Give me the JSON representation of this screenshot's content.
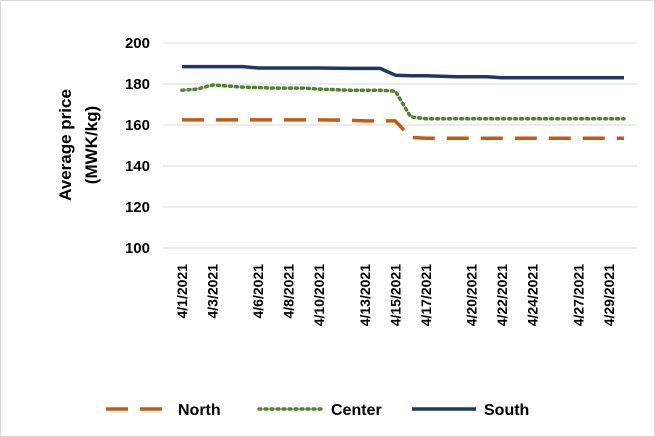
{
  "chart_data": {
    "type": "line",
    "ylabel": "Average price (MWK/kg)",
    "ylabel_lines": [
      "Average price",
      "(MWK/kg)"
    ],
    "xlabel": "",
    "ylim": [
      100,
      200
    ],
    "y_ticks": [
      "200",
      "180",
      "160",
      "140",
      "120",
      "100"
    ],
    "y_tick_values": [
      200,
      180,
      160,
      140,
      120,
      100
    ],
    "grid": true,
    "legend_position": "bottom",
    "x": [
      "4/1/2021",
      "4/2/2021",
      "4/3/2021",
      "4/5/2021",
      "4/6/2021",
      "4/7/2021",
      "4/8/2021",
      "4/9/2021",
      "4/10/2021",
      "4/12/2021",
      "4/13/2021",
      "4/14/2021",
      "4/15/2021",
      "4/16/2021",
      "4/17/2021",
      "4/19/2021",
      "4/20/2021",
      "4/21/2021",
      "4/22/2021",
      "4/23/2021",
      "4/24/2021",
      "4/26/2021",
      "4/27/2021",
      "4/28/2021",
      "4/29/2021",
      "4/30/2021"
    ],
    "x_tick_labels": [
      "4/1/2021",
      "4/3/2021",
      "4/6/2021",
      "4/8/2021",
      "4/10/2021",
      "4/13/2021",
      "4/15/2021",
      "4/17/2021",
      "4/20/2021",
      "4/22/2021",
      "4/24/2021",
      "4/27/2021",
      "4/29/2021"
    ],
    "series": [
      {
        "name": "North",
        "color": "#C55A11",
        "style": "dashed",
        "values": [
          162.5,
          162.5,
          162.5,
          162.5,
          162.5,
          162.5,
          162.5,
          162.5,
          162.5,
          162.3,
          162.0,
          162.0,
          162.0,
          154.0,
          153.5,
          153.5,
          153.5,
          153.5,
          153.5,
          153.5,
          153.5,
          153.5,
          153.5,
          153.5,
          153.5,
          153.5
        ]
      },
      {
        "name": "Center",
        "color": "#548235",
        "style": "dotted",
        "values": [
          177.0,
          177.5,
          179.5,
          178.5,
          178.3,
          178.0,
          178.0,
          178.0,
          177.5,
          177.0,
          177.0,
          177.0,
          176.5,
          164.0,
          163.0,
          163.0,
          163.0,
          163.0,
          163.0,
          163.0,
          163.0,
          163.0,
          163.0,
          163.0,
          163.0,
          163.0
        ]
      },
      {
        "name": "South",
        "color": "#1F3864",
        "style": "solid",
        "values": [
          188.5,
          188.5,
          188.5,
          188.5,
          187.8,
          187.8,
          187.8,
          187.8,
          187.8,
          187.6,
          187.6,
          187.6,
          184.3,
          184.0,
          184.0,
          183.5,
          183.5,
          183.5,
          183.0,
          183.0,
          183.0,
          183.0,
          183.0,
          183.0,
          183.0,
          183.0
        ]
      }
    ]
  }
}
